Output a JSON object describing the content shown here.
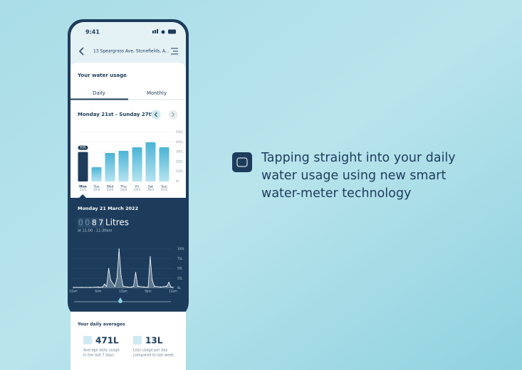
{
  "status_bar": {
    "time": "9:41"
  },
  "header": {
    "address": "13 Speargrass Ave, Stonefields, A..."
  },
  "usage_card": {
    "title": "Your water usage",
    "tabs": [
      "Daily",
      "Monthly"
    ],
    "week_range": "Monday 21st - Sunday 27th"
  },
  "reading": {
    "date": "Monday 21 March 2022",
    "digits": [
      "0",
      "0",
      "8",
      "7"
    ],
    "unit": "Litres",
    "time": "at 11:00 - 11:30am"
  },
  "chart_data": [
    {
      "type": "bar",
      "categories": [
        "Mon",
        "Tue",
        "Wed",
        "Thu",
        "Fri",
        "Sat",
        "Sun"
      ],
      "dates": [
        "21/3",
        "22/3",
        "23/3",
        "24/3",
        "25/3",
        "26/3",
        "27/3"
      ],
      "values": [
        300,
        145,
        290,
        312,
        348,
        399,
        348
      ],
      "value_labels": [
        "300L",
        null,
        null,
        null,
        null,
        null,
        null
      ],
      "color": "#5bc0dc",
      "highlight_color": "#1d3c5c",
      "ylim": [
        0,
        500
      ],
      "yticks": [
        {
          "value": 0,
          "label": "0L"
        },
        {
          "value": 100,
          "label": "100L"
        },
        {
          "value": 200,
          "label": "200L"
        },
        {
          "value": 300,
          "label": "300L"
        },
        {
          "value": 400,
          "label": "400L"
        },
        {
          "value": 500,
          "label": "500L"
        }
      ],
      "grid": true
    },
    {
      "type": "area",
      "color": "#d6e6ee",
      "x": [
        0,
        2,
        4,
        6,
        7,
        7.5,
        8,
        8.5,
        9,
        10,
        10.5,
        11,
        11.5,
        12,
        13,
        14,
        14.5,
        15,
        15.5,
        17,
        18,
        18.5,
        19,
        19.5,
        21,
        22.5,
        23,
        23.5,
        24
      ],
      "values": [
        2,
        2,
        2,
        3,
        3,
        10,
        5,
        50,
        20,
        5,
        25,
        100,
        30,
        5,
        3,
        3,
        5,
        40,
        5,
        3,
        3,
        80,
        20,
        5,
        3,
        5,
        15,
        3,
        2
      ],
      "xlim": [
        0,
        24
      ],
      "xticks": [
        {
          "value": 0,
          "label": "12am"
        },
        {
          "value": 6,
          "label": "6am"
        },
        {
          "value": 12,
          "label": "12pm"
        },
        {
          "value": 18,
          "label": "6pm"
        },
        {
          "value": 24,
          "label": "12am"
        }
      ],
      "ylim": [
        0,
        100
      ],
      "yticks": [
        {
          "value": 0,
          "label": "0L"
        },
        {
          "value": 25,
          "label": "25L"
        },
        {
          "value": 50,
          "label": "50L"
        },
        {
          "value": 75,
          "label": "75L"
        },
        {
          "value": 100,
          "label": "100L"
        }
      ]
    }
  ],
  "averages": {
    "title": "Your daily averages",
    "items": [
      {
        "value": "471L",
        "caption": [
          "Average daily usage",
          "in the last 7 days"
        ]
      },
      {
        "value": "13L",
        "caption": [
          "Less usage per day",
          "compared to last week"
        ]
      }
    ]
  },
  "feature": {
    "lines": [
      "Tapping straight into your daily",
      "water usage using new smart",
      "water-meter technology"
    ]
  }
}
